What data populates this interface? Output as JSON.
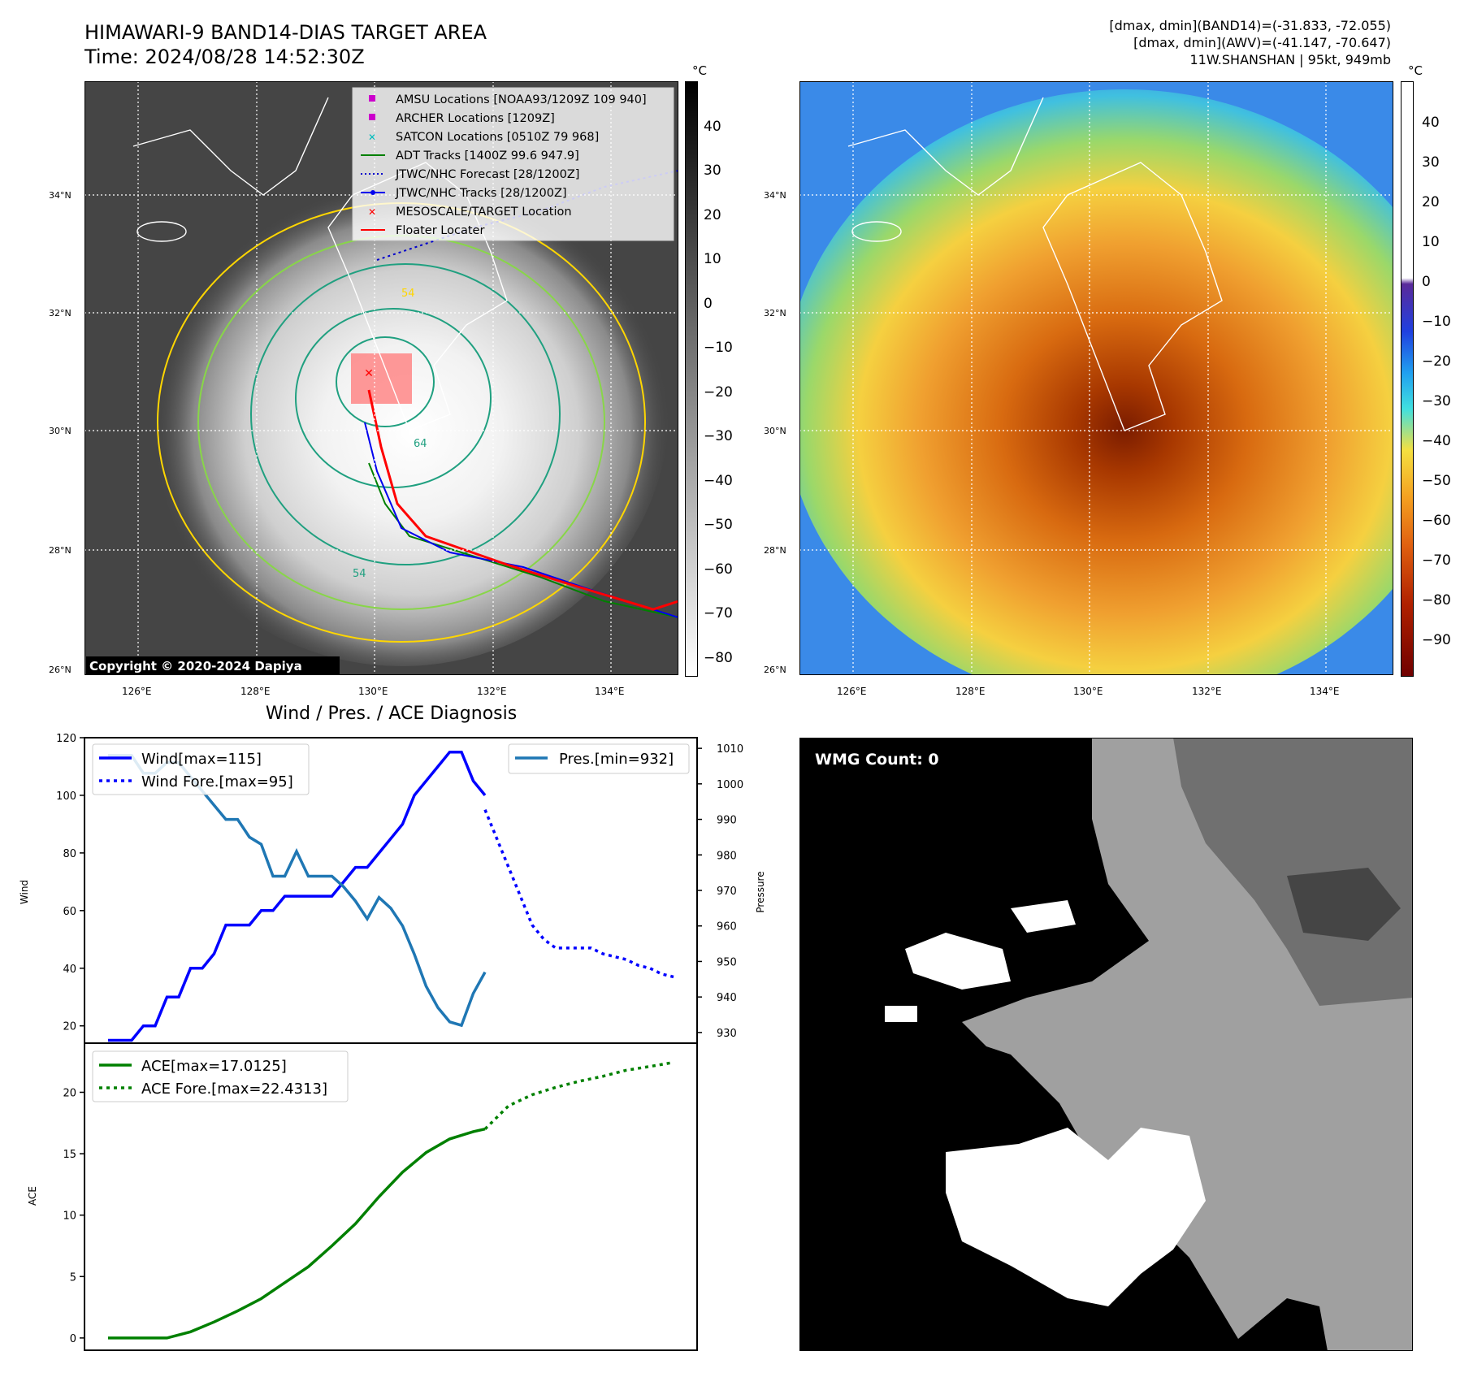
{
  "header": {
    "title_line1": "HIMAWARI-9 BAND14-DIAS TARGET AREA",
    "title_line2": "Time: 2024/08/28 14:52:30Z",
    "right_line1": "[dmax, dmin](BAND14)=(-31.833, -72.055)",
    "right_line2": "[dmax, dmin](AWV)=(-41.147, -70.647)",
    "right_line3": "11W.SHANSHAN | 95kt, 949mb"
  },
  "maps": {
    "lat_labels": [
      "34°N",
      "32°N",
      "30°N",
      "28°N",
      "26°N"
    ],
    "lon_labels": [
      "126°E",
      "128°E",
      "130°E",
      "132°E",
      "134°E"
    ],
    "copyright": "Copyright © 2020-2024 Dapiya",
    "colorbar_unit": "°C",
    "left_colorbar_ticks": [
      "40",
      "30",
      "20",
      "10",
      "0",
      "−10",
      "−20",
      "−30",
      "−40",
      "−50",
      "−60",
      "−70",
      "−80"
    ],
    "right_colorbar_ticks": [
      "40",
      "30",
      "20",
      "10",
      "0",
      "−10",
      "−20",
      "−30",
      "−40",
      "−50",
      "−60",
      "−70",
      "−80",
      "−90"
    ],
    "legend": [
      {
        "label": "AMSU Locations [NOAA93/1209Z 109 940]",
        "symbol": "square",
        "color": "#cc00cc"
      },
      {
        "label": "ARCHER Locations [1209Z]",
        "symbol": "square",
        "color": "#cc00cc"
      },
      {
        "label": "SATCON Locations [0510Z 79 968]",
        "symbol": "x",
        "color": "#00bbbb"
      },
      {
        "label": "ADT Tracks [1400Z 99.6 947.9]",
        "symbol": "line",
        "color": "#008000"
      },
      {
        "label": "JTWC/NHC Forecast [28/1200Z]",
        "symbol": "dotted",
        "color": "#0000cc"
      },
      {
        "label": "JTWC/NHC Tracks [28/1200Z]",
        "symbol": "line-dot",
        "color": "#0000ee"
      },
      {
        "label": "MESOSCALE/TARGET Location",
        "symbol": "x",
        "color": "#ff0000"
      },
      {
        "label": "Floater Locater",
        "symbol": "line",
        "color": "#ff0000"
      }
    ],
    "contour_labels": [
      "54",
      "64",
      "54"
    ],
    "wmg_label": "WMG Count: 0"
  },
  "chart_data": [
    {
      "type": "line",
      "title": "Wind / Pres. / ACE Diagnosis",
      "ylabel": "Wind",
      "ylabel_right": "Pressure",
      "ylim": [
        14,
        120
      ],
      "ylim_right": [
        927,
        1013
      ],
      "yticks": [
        "120",
        "100",
        "80",
        "60",
        "40",
        "20"
      ],
      "yticks_right": [
        "1010",
        "1000",
        "990",
        "980",
        "970",
        "960",
        "950",
        "940",
        "930"
      ],
      "series": [
        {
          "name": "Wind[max=115]",
          "color": "#0000ff",
          "style": "solid",
          "x": [
            0,
            1,
            2,
            3,
            4,
            5,
            6,
            7,
            8,
            9,
            10,
            11,
            12,
            13,
            14,
            15,
            16,
            17,
            18,
            19,
            20,
            21,
            22,
            23,
            24,
            25,
            26,
            27,
            28
          ],
          "values": [
            15,
            15,
            15,
            20,
            20,
            30,
            30,
            40,
            40,
            45,
            55,
            55,
            55,
            60,
            60,
            65,
            65,
            65,
            65,
            65,
            70,
            75,
            75,
            80,
            85,
            90,
            100,
            105,
            110
          ]
        },
        {
          "name": "Pres.[min=932]",
          "color": "#1f77b4",
          "style": "solid",
          "axis": "right",
          "x": [
            0,
            1,
            2,
            3,
            4,
            5,
            6,
            7,
            8,
            9,
            10,
            11,
            12,
            13,
            14,
            15,
            16,
            17,
            18,
            19,
            20,
            21,
            22,
            23,
            24,
            25,
            26,
            27,
            28,
            29,
            30,
            31,
            32
          ],
          "values": [
            1008,
            1008,
            1008,
            1003,
            1003,
            1006,
            1006,
            1002,
            998,
            994,
            990,
            990,
            985,
            983,
            974,
            974,
            981,
            974,
            974,
            974,
            971,
            967,
            962,
            968,
            965,
            960,
            952,
            943,
            937,
            933,
            932,
            941,
            947
          ]
        }
      ],
      "wind_tail": {
        "x": [
          28,
          29,
          30,
          31,
          32
        ],
        "values": [
          110,
          115,
          115,
          105,
          100
        ]
      },
      "forecast": {
        "name": "Wind Fore.[max=95]",
        "color": "#0000ff",
        "style": "dotted",
        "x": [
          32,
          33,
          34,
          35,
          36,
          37,
          38,
          39,
          40,
          41,
          42,
          43,
          44,
          45,
          46,
          47,
          48
        ],
        "values": [
          95,
          85,
          75,
          65,
          55,
          50,
          47,
          47,
          47,
          47,
          45,
          44,
          43,
          41,
          40,
          38,
          37
        ]
      }
    },
    {
      "type": "line",
      "ylabel": "ACE",
      "ylim": [
        -1,
        24
      ],
      "yticks": [
        "20",
        "15",
        "10",
        "5",
        "0"
      ],
      "series": [
        {
          "name": "ACE[max=17.0125]",
          "color": "#008000",
          "style": "solid",
          "x": [
            0,
            2,
            5,
            7,
            9,
            11,
            13,
            15,
            17,
            19,
            21,
            23,
            25,
            27,
            29,
            31,
            32
          ],
          "values": [
            0,
            0,
            0,
            0.5,
            1.3,
            2.2,
            3.2,
            4.5,
            5.8,
            7.5,
            9.3,
            11.5,
            13.5,
            15.1,
            16.2,
            16.8,
            17.0125
          ]
        },
        {
          "name": "ACE Fore.[max=22.4313]",
          "color": "#008000",
          "style": "dotted",
          "x": [
            32,
            34,
            36,
            38,
            40,
            42,
            44,
            46,
            48
          ],
          "values": [
            17.0125,
            18.9,
            19.8,
            20.4,
            20.9,
            21.3,
            21.8,
            22.1,
            22.4313
          ]
        }
      ]
    }
  ]
}
